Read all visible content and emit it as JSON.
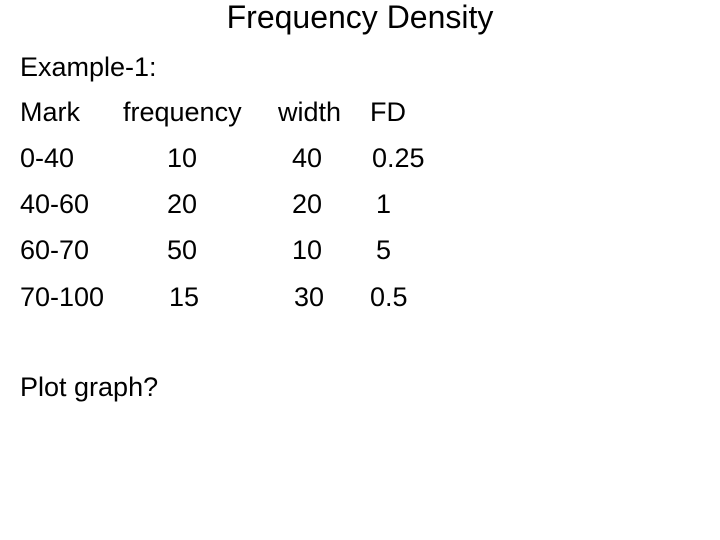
{
  "title": "Frequency Density",
  "example_label": "Example-1:",
  "table": {
    "headers": [
      "Mark",
      "frequency",
      "width",
      "FD"
    ],
    "rows": [
      [
        "0-40",
        "10",
        "40",
        "0.25"
      ],
      [
        "40-60",
        "20",
        "20",
        "1"
      ],
      [
        "60-70",
        "50",
        "10",
        "5"
      ],
      [
        "70-100",
        "15",
        "30",
        "0.5"
      ]
    ]
  },
  "question": "Plot graph?"
}
